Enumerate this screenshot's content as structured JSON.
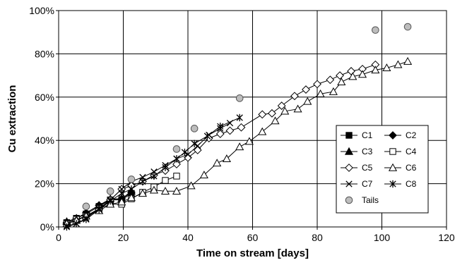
{
  "chart_data": {
    "type": "scatter",
    "title": "",
    "xlabel": "Time on stream [days]",
    "ylabel": "Cu extraction",
    "xlim": [
      0,
      120
    ],
    "ylim": [
      0,
      100
    ],
    "x_ticks": [
      0,
      20,
      40,
      60,
      80,
      100,
      120
    ],
    "y_ticks": [
      0,
      20,
      40,
      60,
      80,
      100
    ],
    "y_tick_labels": [
      "0%",
      "20%",
      "40%",
      "60%",
      "80%",
      "100%"
    ],
    "x_tick_labels": [
      "0",
      "20",
      "40",
      "60",
      "80",
      "100",
      "120"
    ],
    "grid": true,
    "legend_position": "right",
    "series": [
      {
        "name": "C1",
        "marker": "filled-square",
        "line": true,
        "points": [
          [
            2.5,
            2.0
          ],
          [
            5.5,
            4.0
          ],
          [
            8.5,
            6.0
          ],
          [
            12.5,
            9.5
          ],
          [
            16,
            12.5
          ],
          [
            19.5,
            12.5
          ],
          [
            22.5,
            15.5
          ]
        ]
      },
      {
        "name": "C2",
        "marker": "filled-diamond",
        "line": true,
        "points": [
          [
            2.5,
            2.0
          ],
          [
            5.5,
            4.0
          ],
          [
            8.5,
            6.5
          ],
          [
            12.5,
            10.0
          ],
          [
            16,
            12.5
          ],
          [
            19.5,
            13.0
          ],
          [
            22.5,
            16.0
          ]
        ]
      },
      {
        "name": "C3",
        "marker": "filled-triangle",
        "line": true,
        "points": [
          [
            2.5,
            2.5
          ],
          [
            5.5,
            4.0
          ],
          [
            8.5,
            6.5
          ],
          [
            12.5,
            10.0
          ],
          [
            16,
            13.0
          ],
          [
            19.5,
            13.0
          ],
          [
            22.5,
            16.5
          ]
        ]
      },
      {
        "name": "C4",
        "marker": "open-square",
        "line": true,
        "points": [
          [
            2.5,
            1.5
          ],
          [
            5.5,
            3.5
          ],
          [
            8.5,
            5.0
          ],
          [
            12.5,
            8.5
          ],
          [
            16,
            10.5
          ],
          [
            19.5,
            10.5
          ],
          [
            22.5,
            13.0
          ],
          [
            26,
            16.0
          ],
          [
            29.5,
            18.5
          ],
          [
            33,
            21.5
          ],
          [
            36.5,
            23.5
          ]
        ]
      },
      {
        "name": "C5",
        "marker": "open-diamond",
        "line": true,
        "points": [
          [
            2.5,
            1.5
          ],
          [
            5.5,
            3.0
          ],
          [
            8.5,
            5.0
          ],
          [
            12.5,
            8.0
          ],
          [
            16,
            12.5
          ],
          [
            19.5,
            17.5
          ],
          [
            22.5,
            19.0
          ],
          [
            26,
            21.0
          ],
          [
            29.5,
            24.0
          ],
          [
            33,
            26.0
          ],
          [
            36.5,
            29.0
          ],
          [
            40,
            32.0
          ],
          [
            43,
            35.5
          ],
          [
            46.5,
            41.0
          ],
          [
            50,
            43.0
          ],
          [
            53,
            44.5
          ],
          [
            56.5,
            46.0
          ],
          [
            63,
            52.0
          ],
          [
            66,
            52.5
          ],
          [
            69,
            56.0
          ],
          [
            73,
            60.5
          ],
          [
            76.5,
            63.5
          ],
          [
            80,
            66.0
          ],
          [
            84,
            68.0
          ],
          [
            87,
            70.0
          ],
          [
            90.5,
            72.0
          ],
          [
            94,
            73.0
          ],
          [
            98,
            75.0
          ]
        ]
      },
      {
        "name": "C6",
        "marker": "open-triangle",
        "line": true,
        "points": [
          [
            2.5,
            1.5
          ],
          [
            5.5,
            3.0
          ],
          [
            8.5,
            5.0
          ],
          [
            12.5,
            7.5
          ],
          [
            16,
            10.5
          ],
          [
            19.5,
            11.5
          ],
          [
            22.5,
            13.5
          ],
          [
            26,
            15.5
          ],
          [
            29.5,
            17.0
          ],
          [
            33,
            16.5
          ],
          [
            36.5,
            16.5
          ],
          [
            41,
            19.0
          ],
          [
            45,
            24.0
          ],
          [
            49,
            29.5
          ],
          [
            52,
            31.5
          ],
          [
            56,
            37.0
          ],
          [
            59,
            39.5
          ],
          [
            63,
            44.0
          ],
          [
            67,
            49.0
          ],
          [
            70,
            53.5
          ],
          [
            74,
            54.5
          ],
          [
            77,
            58.0
          ],
          [
            81,
            61.5
          ],
          [
            85,
            62.5
          ],
          [
            87.5,
            67.0
          ],
          [
            91,
            69.5
          ],
          [
            94,
            70.5
          ],
          [
            98,
            72.5
          ],
          [
            101.5,
            73.5
          ],
          [
            105,
            75.0
          ],
          [
            108,
            76.5
          ]
        ]
      },
      {
        "name": "C7",
        "marker": "x",
        "line": true,
        "points": [
          [
            2.5,
            0.5
          ],
          [
            5.5,
            1.5
          ],
          [
            8.5,
            4.0
          ],
          [
            12.5,
            8.5
          ],
          [
            16,
            12.5
          ],
          [
            19.5,
            17.5
          ],
          [
            22.5,
            21.0
          ],
          [
            26,
            23.0
          ],
          [
            29.5,
            25.5
          ],
          [
            33,
            28.5
          ],
          [
            36.5,
            31.5
          ],
          [
            40,
            33.5
          ],
          [
            43,
            37.5
          ],
          [
            46.5,
            42.5
          ],
          [
            50,
            45.5
          ],
          [
            53,
            48.0
          ]
        ]
      },
      {
        "name": "C8",
        "marker": "asterisk",
        "line": true,
        "points": [
          [
            2.5,
            0.0
          ],
          [
            5.5,
            1.5
          ],
          [
            8.5,
            3.5
          ],
          [
            12.5,
            8.0
          ],
          [
            16,
            12.0
          ],
          [
            19.5,
            15.5
          ],
          [
            22.5,
            17.5
          ],
          [
            26,
            21.0
          ],
          [
            29.5,
            23.5
          ],
          [
            33,
            27.5
          ],
          [
            36.5,
            31.5
          ],
          [
            39,
            34.5
          ],
          [
            42,
            38.5
          ],
          [
            46,
            42.0
          ],
          [
            50,
            46.5
          ],
          [
            56,
            50.5
          ]
        ]
      },
      {
        "name": "Tails",
        "marker": "filled-circle-gray",
        "line": false,
        "points": [
          [
            8.5,
            9.5
          ],
          [
            16,
            16.5
          ],
          [
            22.5,
            22.0
          ],
          [
            36.5,
            36.0
          ],
          [
            42,
            45.5
          ],
          [
            56,
            59.5
          ],
          [
            98,
            91.0
          ],
          [
            108,
            92.5
          ]
        ]
      }
    ]
  }
}
